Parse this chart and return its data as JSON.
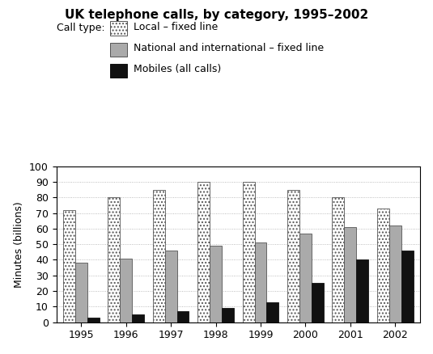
{
  "title": "UK telephone calls, by category, 1995–2002",
  "ylabel": "Minutes (billions)",
  "years": [
    1995,
    1996,
    1997,
    1998,
    1999,
    2000,
    2001,
    2002
  ],
  "local_fixed": [
    72,
    80,
    85,
    90,
    90,
    85,
    80,
    73
  ],
  "national_fixed": [
    38,
    41,
    46,
    49,
    51,
    57,
    61,
    62
  ],
  "mobiles": [
    3,
    5,
    7,
    9,
    13,
    25,
    40,
    46
  ],
  "ylim": [
    0,
    100
  ],
  "yticks": [
    0,
    10,
    20,
    30,
    40,
    50,
    60,
    70,
    80,
    90,
    100
  ],
  "legend_labels": [
    "Local – fixed line",
    "National and international – fixed line",
    "Mobiles (all calls)"
  ],
  "legend_title": "Call type:",
  "bar_width": 0.27
}
